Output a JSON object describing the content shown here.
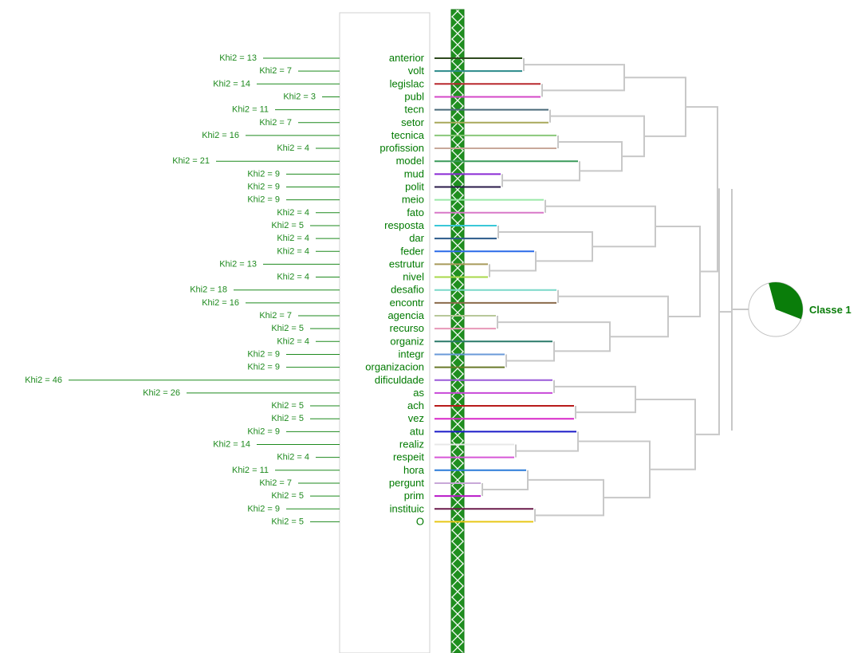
{
  "colors": {
    "text_green": "#007a00",
    "khi_green": "#1e8a1e",
    "band_green": "#1f8f1f",
    "tree_gray": "#c8c8c8",
    "pie_fill": "#0a7d0a"
  },
  "classe": {
    "label": "Classe 1",
    "share": 0.35
  },
  "terms": [
    {
      "word": "anterior",
      "khi": "Khi2 = 13",
      "value": 13,
      "color": "#2e4a1e"
    },
    {
      "word": "volt",
      "khi": "Khi2 = 7",
      "value": 7,
      "color": "#2a8a8a"
    },
    {
      "word": "legislac",
      "khi": "Khi2 = 14",
      "value": 14,
      "color": "#b8282e"
    },
    {
      "word": "publ",
      "khi": "Khi2 = 3",
      "value": 3,
      "color": "#d448c8"
    },
    {
      "word": "tecn",
      "khi": "Khi2 = 11",
      "value": 11,
      "color": "#4a6a7a"
    },
    {
      "word": "setor",
      "khi": "Khi2 = 7",
      "value": 7,
      "color": "#a8a85a"
    },
    {
      "word": "tecnica",
      "khi": "Khi2 = 16",
      "value": 16,
      "color": "#8ac87a"
    },
    {
      "word": "profission",
      "khi": "Khi2 = 4",
      "value": 4,
      "color": "#c8a89a"
    },
    {
      "word": "model",
      "khi": "Khi2 = 21",
      "value": 21,
      "color": "#3a9a5a"
    },
    {
      "word": "mud",
      "khi": "Khi2 = 9",
      "value": 9,
      "color": "#8a2ad4"
    },
    {
      "word": "polit",
      "khi": "Khi2 = 9",
      "value": 9,
      "color": "#2a1a4a"
    },
    {
      "word": "meio",
      "khi": "Khi2 = 9",
      "value": 9,
      "color": "#9ae8a8"
    },
    {
      "word": "fato",
      "khi": "Khi2 = 4",
      "value": 4,
      "color": "#d878c8"
    },
    {
      "word": "resposta",
      "khi": "Khi2 = 5",
      "value": 5,
      "color": "#3ac8d8"
    },
    {
      "word": "dar",
      "khi": "Khi2 = 4",
      "value": 4,
      "color": "#2a5a8a"
    },
    {
      "word": "feder",
      "khi": "Khi2 = 4",
      "value": 4,
      "color": "#2a6ae8"
    },
    {
      "word": "estrutur",
      "khi": "Khi2 = 13",
      "value": 13,
      "color": "#a89a5a"
    },
    {
      "word": "nivel",
      "khi": "Khi2 = 4",
      "value": 4,
      "color": "#a8d84a"
    },
    {
      "word": "desafio",
      "khi": "Khi2 = 18",
      "value": 18,
      "color": "#7ad8c8"
    },
    {
      "word": "encontr",
      "khi": "Khi2 = 16",
      "value": 16,
      "color": "#8a6a4a"
    },
    {
      "word": "agencia",
      "khi": "Khi2 = 7",
      "value": 7,
      "color": "#b8c89a"
    },
    {
      "word": "recurso",
      "khi": "Khi2 = 5",
      "value": 5,
      "color": "#e898b8"
    },
    {
      "word": "organiz",
      "khi": "Khi2 = 4",
      "value": 4,
      "color": "#2a7a6a"
    },
    {
      "word": "integr",
      "khi": "Khi2 = 9",
      "value": 9,
      "color": "#6a9ad8"
    },
    {
      "word": "organizacion",
      "khi": "Khi2 = 9",
      "value": 9,
      "color": "#6a7a2a"
    },
    {
      "word": "dificuldade",
      "khi": "Khi2 = 46",
      "value": 46,
      "color": "#9a5ad8"
    },
    {
      "word": "as",
      "khi": "Khi2 = 26",
      "value": 26,
      "color": "#c848d8"
    },
    {
      "word": "ach",
      "khi": "Khi2 = 5",
      "value": 5,
      "color": "#b81a1a"
    },
    {
      "word": "vez",
      "khi": "Khi2 = 5",
      "value": 5,
      "color": "#d828c8"
    },
    {
      "word": "atu",
      "khi": "Khi2 = 9",
      "value": 9,
      "color": "#1a1ac8"
    },
    {
      "word": "realiz",
      "khi": "Khi2 = 14",
      "value": 14,
      "color": "#e8e8e8"
    },
    {
      "word": "respeit",
      "khi": "Khi2 = 4",
      "value": 4,
      "color": "#d858d8"
    },
    {
      "word": "hora",
      "khi": "Khi2 = 11",
      "value": 11,
      "color": "#2a7ad8"
    },
    {
      "word": "pergunt",
      "khi": "Khi2 = 7",
      "value": 7,
      "color": "#c8a8d8"
    },
    {
      "word": "prim",
      "khi": "Khi2 = 5",
      "value": 5,
      "color": "#b818c8"
    },
    {
      "word": "instituic",
      "khi": "Khi2 = 9",
      "value": 9,
      "color": "#6a1a4a"
    },
    {
      "word": "O",
      "khi": "Khi2 = 5",
      "value": 5,
      "color": "#e8c818"
    }
  ]
}
